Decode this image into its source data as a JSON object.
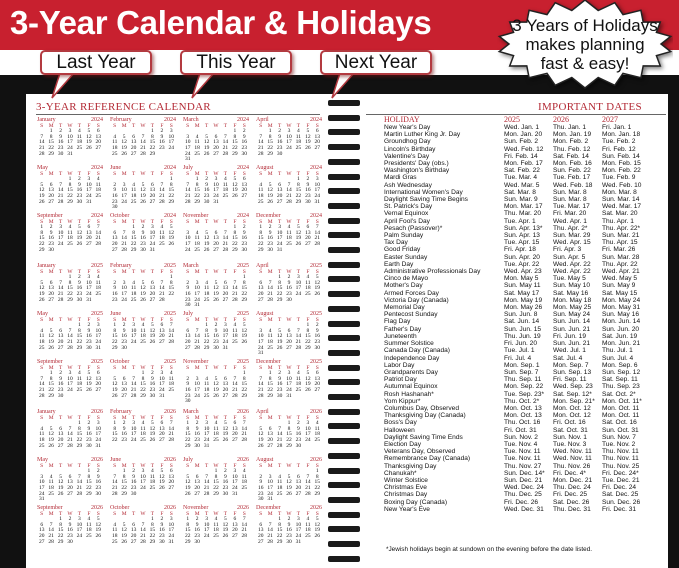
{
  "banner": {
    "title": "3-Year Calendar & Holidays",
    "color": "#c8202f"
  },
  "left_page": {
    "heading": "3-YEAR REFERENCE CALENDAR",
    "weekday_letters": [
      "S",
      "M",
      "T",
      "W",
      "T",
      "F",
      "S"
    ],
    "months": [
      "January",
      "February",
      "March",
      "April",
      "May",
      "June",
      "July",
      "August",
      "September",
      "October",
      "November",
      "December"
    ],
    "years": [
      2024,
      2025,
      2026
    ],
    "callouts": [
      "Last Year",
      "This Year",
      "Next Year"
    ]
  },
  "right_page": {
    "heading": "IMPORTANT DATES",
    "columns": [
      "HOLIDAY",
      "2025",
      "2026",
      "2027"
    ],
    "rows": [
      [
        "New Year's Day",
        "Wed. Jan. 1",
        "Thu. Jan. 1",
        "Fri. Jan. 1"
      ],
      [
        "Martin Luther King Jr. Day",
        "Mon. Jan. 20",
        "Mon. Jan. 19",
        "Mon. Jan. 18"
      ],
      [
        "Groundhog Day",
        "Sun. Feb. 2",
        "Mon. Feb. 2",
        "Tue. Feb. 2"
      ],
      [
        "Lincoln's Birthday",
        "Wed. Feb. 12",
        "Thu. Feb. 12",
        "Fri. Feb. 12"
      ],
      [
        "Valentine's Day",
        "Fri. Feb. 14",
        "Sat. Feb. 14",
        "Sun. Feb. 14"
      ],
      [
        "Presidents' Day (obs.)",
        "Mon. Feb. 17",
        "Mon. Feb. 16",
        "Mon. Feb. 15"
      ],
      [
        "Washington's Birthday",
        "Sat. Feb. 22",
        "Sun. Feb. 22",
        "Mon. Feb. 22"
      ],
      [
        "Mardi Gras",
        "Tue. Mar. 4",
        "Tue. Feb. 17",
        "Tue. Feb. 9"
      ],
      [
        "Ash Wednesday",
        "Wed. Mar. 5",
        "Wed. Feb. 18",
        "Wed. Feb. 10"
      ],
      [
        "International Women's Day",
        "Sat. Mar. 8",
        "Sun. Mar. 8",
        "Mon. Mar. 8"
      ],
      [
        "Daylight Saving Time Begins",
        "Sun. Mar. 9",
        "Sun. Mar. 8",
        "Sun. Mar. 14"
      ],
      [
        "St. Patrick's Day",
        "Mon. Mar. 17",
        "Tue. Mar. 17",
        "Wed. Mar. 17"
      ],
      [
        "Vernal Equinox",
        "Thu. Mar. 20",
        "Fri. Mar. 20",
        "Sat. Mar. 20"
      ],
      [
        "April Fool's Day",
        "Tue. Apr. 1",
        "Wed. Apr. 1",
        "Thu. Apr. 1"
      ],
      [
        "Pesach (Passover)*",
        "Sun. Apr. 13*",
        "Thu. Apr. 2*",
        "Thu. Apr. 22*"
      ],
      [
        "Palm Sunday",
        "Sun. Apr. 13",
        "Sun. Mar. 29",
        "Sun. Mar. 21"
      ],
      [
        "Tax Day",
        "Tue. Apr. 15",
        "Wed. Apr. 15",
        "Thu. Apr. 15"
      ],
      [
        "Good Friday",
        "Fri. Apr. 18",
        "Fri. Apr. 3",
        "Fri. Mar. 26"
      ],
      [
        "Easter Sunday",
        "Sun. Apr. 20",
        "Sun. Apr. 5",
        "Sun. Mar. 28"
      ],
      [
        "Earth Day",
        "Tue. Apr. 22",
        "Wed. Apr. 22",
        "Thu. Apr. 22"
      ],
      [
        "Administrative Professionals Day",
        "Wed. Apr. 23",
        "Wed. Apr. 22",
        "Wed. Apr. 21"
      ],
      [
        "Cinco de Mayo",
        "Mon. May 5",
        "Tue. May 5",
        "Wed. May 5"
      ],
      [
        "Mother's Day",
        "Sun. May 11",
        "Sun. May 10",
        "Sun. May 9"
      ],
      [
        "Armed Forces Day",
        "Sat. May 17",
        "Sat. May 16",
        "Sat. May 15"
      ],
      [
        "Victoria Day (Canada)",
        "Mon. May 19",
        "Mon. May 18",
        "Mon. May 24"
      ],
      [
        "Memorial Day",
        "Mon. May 26",
        "Mon. May 25",
        "Mon. May 31"
      ],
      [
        "Pentecost Sunday",
        "Sun. Jun. 8",
        "Sun. May 24",
        "Sun. May 16"
      ],
      [
        "Flag Day",
        "Sat. Jun. 14",
        "Sun. Jun. 14",
        "Mon. Jun. 14"
      ],
      [
        "Father's Day",
        "Sun. Jun. 15",
        "Sun. Jun. 21",
        "Sun. Jun. 20"
      ],
      [
        "Juneteenth",
        "Thu. Jun. 19",
        "Fri. Jun. 19",
        "Sat. Jun. 19"
      ],
      [
        "Summer Solstice",
        "Fri. Jun. 20",
        "Sun. Jun. 21",
        "Mon. Jun. 21"
      ],
      [
        "Canada Day (Canada)",
        "Tue. Jul. 1",
        "Wed. Jul. 1",
        "Thu. Jul. 1"
      ],
      [
        "Independence Day",
        "Fri. Jul. 4",
        "Sat. Jul. 4",
        "Sun. Jul. 4"
      ],
      [
        "Labor Day",
        "Mon. Sep. 1",
        "Mon. Sep. 7",
        "Mon. Sep. 6"
      ],
      [
        "Grandparents Day",
        "Sun. Sep. 7",
        "Sun. Sep. 13",
        "Sun. Sep. 12"
      ],
      [
        "Patriot Day",
        "Thu. Sep. 11",
        "Fri. Sep. 11",
        "Sat. Sep. 11"
      ],
      [
        "Autumnal Equinox",
        "Mon. Sep. 22",
        "Wed. Sep. 23",
        "Thu. Sep. 23"
      ],
      [
        "Rosh Hashanah*",
        "Tue. Sep. 23*",
        "Sat. Sep. 12*",
        "Sat. Oct. 2*"
      ],
      [
        "Yom Kippur*",
        "Thu. Oct. 2*",
        "Mon. Sep. 21*",
        "Mon. Oct. 11*"
      ],
      [
        "Columbus Day, Observed",
        "Mon. Oct. 13",
        "Mon. Oct. 12",
        "Mon. Oct. 11"
      ],
      [
        "Thanksgiving Day (Canada)",
        "Mon. Oct. 13",
        "Mon. Oct. 12",
        "Mon. Oct. 11"
      ],
      [
        "Boss's Day",
        "Thu. Oct. 16",
        "Fri. Oct. 16",
        "Sat. Oct. 16"
      ],
      [
        "Halloween",
        "Fri. Oct. 31",
        "Sat. Oct. 31",
        "Sun. Oct. 31"
      ],
      [
        "Daylight Saving Time Ends",
        "Sun. Nov. 2",
        "Sun. Nov. 1",
        "Sun. Nov. 7"
      ],
      [
        "Election Day",
        "Tue. Nov. 4",
        "Tue. Nov. 3",
        "Tue. Nov. 2"
      ],
      [
        "Veterans Day, Observed",
        "Tue. Nov. 11",
        "Wed. Nov. 11",
        "Thu. Nov. 11"
      ],
      [
        "Remembrance Day (Canada)",
        "Tue. Nov. 11",
        "Wed. Nov. 11",
        "Thu. Nov. 11"
      ],
      [
        "Thanksgiving Day",
        "Thu. Nov. 27",
        "Thu. Nov. 26",
        "Thu. Nov. 25"
      ],
      [
        "Chanukah*",
        "Sun. Dec. 14*",
        "Fri. Dec. 4*",
        "Fri. Dec. 24*"
      ],
      [
        "Winter Solstice",
        "Sun. Dec. 21",
        "Mon. Dec. 21",
        "Tue. Dec. 21"
      ],
      [
        "Christmas Eve",
        "Wed. Dec. 24",
        "Thu. Dec. 24",
        "Fri. Dec. 24"
      ],
      [
        "Christmas Day",
        "Thu. Dec. 25",
        "Fri. Dec. 25",
        "Sat. Dec. 25"
      ],
      [
        "Boxing Day (Canada)",
        "Fri. Dec. 26",
        "Sat. Dec. 26",
        "Sun. Dec. 26"
      ],
      [
        "New Year's Eve",
        "Wed. Dec. 31",
        "Thu. Dec. 31",
        "Fri. Dec. 31"
      ]
    ],
    "footnote": "*Jewish holidays begin at sundown on the evening before the date listed."
  },
  "starburst": {
    "lines": [
      "3 Years of Holidays",
      "makes planning",
      "fast & easy!"
    ]
  },
  "accent_color": "#b32a35"
}
